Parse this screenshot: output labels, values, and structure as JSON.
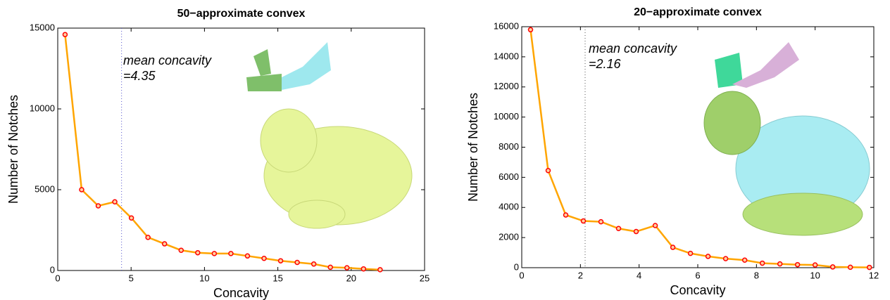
{
  "chart_data": [
    {
      "type": "line",
      "title": "50−approximate convex",
      "xlabel": "Concavity",
      "ylabel": "Number of Notches",
      "x": [
        0.5,
        1.63,
        2.76,
        3.89,
        5.02,
        6.15,
        7.28,
        8.41,
        9.54,
        10.67,
        11.8,
        12.93,
        14.06,
        15.19,
        16.32,
        17.45,
        18.58,
        19.71,
        20.84,
        21.97
      ],
      "series": [
        {
          "color": "#ffa500",
          "marker_color": "#ff0000",
          "values": [
            14600,
            5000,
            4000,
            4250,
            3250,
            2050,
            1650,
            1250,
            1100,
            1050,
            1050,
            900,
            750,
            600,
            500,
            400,
            200,
            170,
            100,
            50
          ]
        }
      ],
      "xlim": [
        0,
        25
      ],
      "xticks": [
        0,
        5,
        10,
        15,
        20,
        25
      ],
      "ylim": [
        0,
        15000
      ],
      "yticks": [
        0,
        5000,
        10000,
        15000
      ],
      "mean_line": 4.35,
      "annotation": [
        "mean concavity",
        "=4.35"
      ]
    },
    {
      "type": "line",
      "title": "20−approximate convex",
      "xlabel": "Concavity",
      "ylabel": "Number of Notches",
      "x": [
        0.3,
        0.9,
        1.5,
        2.1,
        2.7,
        3.3,
        3.9,
        4.55,
        5.15,
        5.75,
        6.35,
        6.95,
        7.6,
        8.2,
        8.8,
        9.4,
        10.0,
        10.6,
        11.2,
        11.85
      ],
      "series": [
        {
          "color": "#ffa500",
          "marker_color": "#ff0000",
          "values": [
            15800,
            6450,
            3500,
            3100,
            3050,
            2600,
            2400,
            2800,
            1350,
            950,
            750,
            600,
            500,
            300,
            250,
            200,
            180,
            50,
            30,
            20
          ]
        }
      ],
      "xlim": [
        0,
        12
      ],
      "xticks": [
        0,
        2,
        4,
        6,
        8,
        10,
        12
      ],
      "ylim": [
        0,
        16000
      ],
      "yticks": [
        0,
        2000,
        4000,
        6000,
        8000,
        10000,
        12000,
        14000,
        16000
      ],
      "mean_line": 2.16,
      "annotation": [
        "mean concavity",
        "=2.16"
      ]
    }
  ]
}
